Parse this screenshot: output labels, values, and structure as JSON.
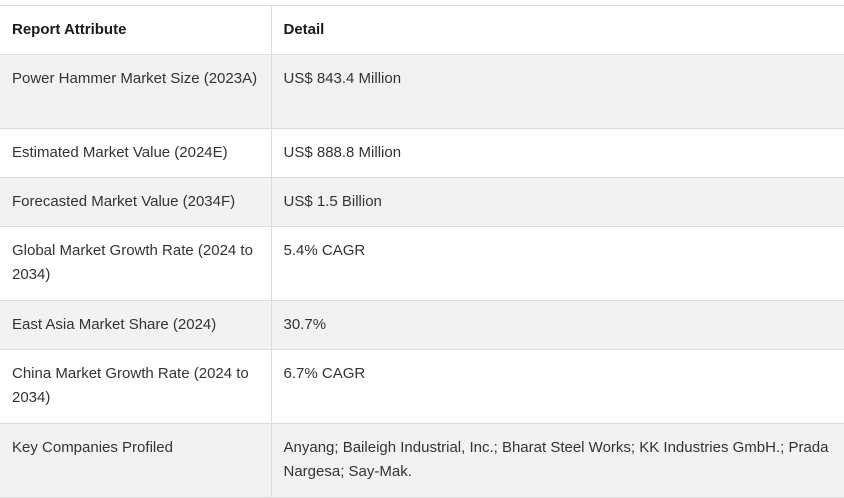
{
  "table": {
    "headers": [
      "Report Attribute",
      "Detail"
    ],
    "rows": [
      [
        "Power Hammer Market Size (2023A)",
        "US$ 843.4 Million"
      ],
      [
        "Estimated Market Value (2024E)",
        "US$ 888.8 Million"
      ],
      [
        "Forecasted Market Value (2034F)",
        "US$ 1.5 Billion"
      ],
      [
        "Global Market Growth Rate (2024 to 2034)",
        "5.4% CAGR"
      ],
      [
        "East Asia Market Share (2024)",
        "30.7%"
      ],
      [
        "China Market Growth Rate (2024 to 2034)",
        "6.7% CAGR"
      ],
      [
        "Key Companies Profiled",
        "Anyang; Baileigh Industrial, Inc.; Bharat Steel Works; KK Industries GmbH.; Prada Nargesa; Say-Mak."
      ]
    ]
  }
}
